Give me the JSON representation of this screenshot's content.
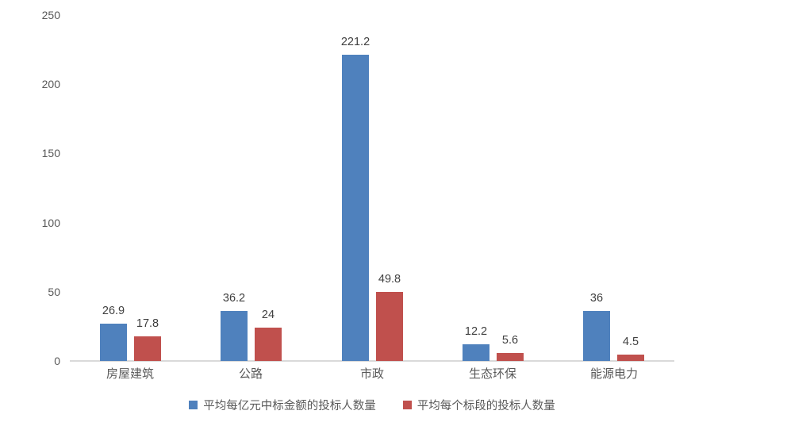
{
  "chart_data": {
    "type": "bar",
    "title": "",
    "xlabel": "",
    "ylabel": "",
    "categories": [
      "房屋建筑",
      "公路",
      "市政",
      "生态环保",
      "能源电力"
    ],
    "series": [
      {
        "name": "平均每亿元中标金额的投标人数量",
        "color": "#4F81BD",
        "values": [
          26.9,
          36.2,
          221.2,
          12.2,
          36
        ],
        "value_labels": [
          "26.9",
          "36.2",
          "221.2",
          "12.2",
          "36"
        ]
      },
      {
        "name": "平均每个标段的投标人数量",
        "color": "#C0504D",
        "values": [
          17.8,
          24,
          49.8,
          5.6,
          4.5
        ],
        "value_labels": [
          "17.8",
          "24",
          "49.8",
          "5.6",
          "4.5"
        ]
      }
    ],
    "ylim": [
      0,
      250
    ],
    "yticks": [
      0,
      50,
      100,
      150,
      200,
      250
    ],
    "grid": false,
    "legend_position": "bottom",
    "colors": {
      "axis_line": "#d9d9d9",
      "tick_text": "#595959",
      "value_label_text": "#404040",
      "background": "#ffffff"
    }
  }
}
